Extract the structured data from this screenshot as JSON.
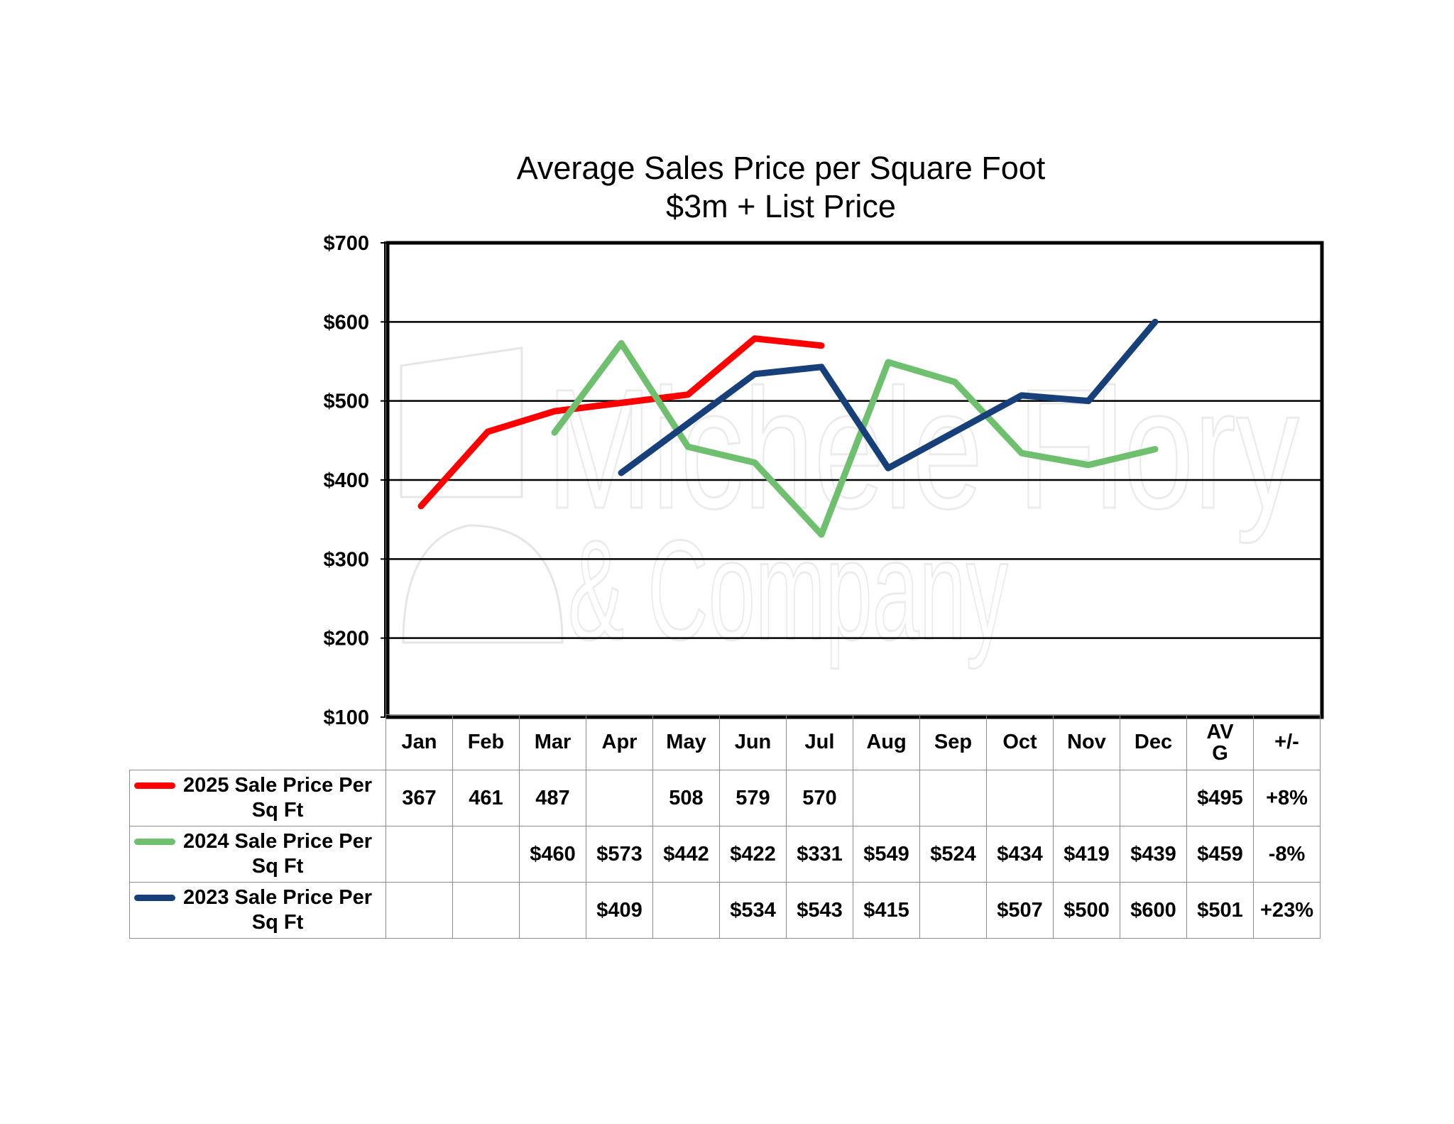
{
  "chart_data": {
    "type": "line",
    "title": "Average Sales Price per Square Foot",
    "subtitle": "$3m + List Price",
    "xlabel": "",
    "ylabel": "",
    "ylim": [
      100,
      700
    ],
    "yticks": [
      "$700",
      "$600",
      "$500",
      "$400",
      "$300",
      "$200",
      "$100"
    ],
    "ytick_values": [
      700,
      600,
      500,
      400,
      300,
      200,
      100
    ],
    "grid": true,
    "legend": "table-left",
    "categories": [
      "Jan",
      "Feb",
      "Mar",
      "Apr",
      "May",
      "Jun",
      "Jul",
      "Aug",
      "Sep",
      "Oct",
      "Nov",
      "Dec"
    ],
    "extra_columns": [
      "AV G",
      "+/-"
    ],
    "series": [
      {
        "name": "2025 Sale Price Per Sq Ft",
        "color": "#ff0000",
        "values": [
          367,
          461,
          487,
          null,
          508,
          579,
          570,
          null,
          null,
          null,
          null,
          null
        ],
        "labels": [
          "367",
          "461",
          "487",
          "",
          "508",
          "579",
          "570",
          "",
          "",
          "",
          "",
          ""
        ],
        "avg": "$495",
        "change": "+8%"
      },
      {
        "name": "2024 Sale Price Per Sq Ft",
        "color": "#6ebf6e",
        "values": [
          null,
          null,
          460,
          573,
          442,
          422,
          331,
          549,
          524,
          434,
          419,
          439
        ],
        "labels": [
          "",
          "",
          "$460",
          "$573",
          "$442",
          "$422",
          "$331",
          "$549",
          "$524",
          "$434",
          "$419",
          "$439"
        ],
        "avg": "$459",
        "change": "-8%"
      },
      {
        "name": "2023 Sale Price Per Sq Ft",
        "color": "#17407a",
        "values": [
          null,
          null,
          null,
          409,
          null,
          534,
          543,
          415,
          null,
          507,
          500,
          600
        ],
        "labels": [
          "",
          "",
          "",
          "$409",
          "",
          "$534",
          "$543",
          "$415",
          "",
          "$507",
          "$500",
          "$600"
        ],
        "avg": "$501",
        "change": "+23%"
      }
    ],
    "watermark": [
      "Michele Flory",
      "& Company"
    ]
  }
}
